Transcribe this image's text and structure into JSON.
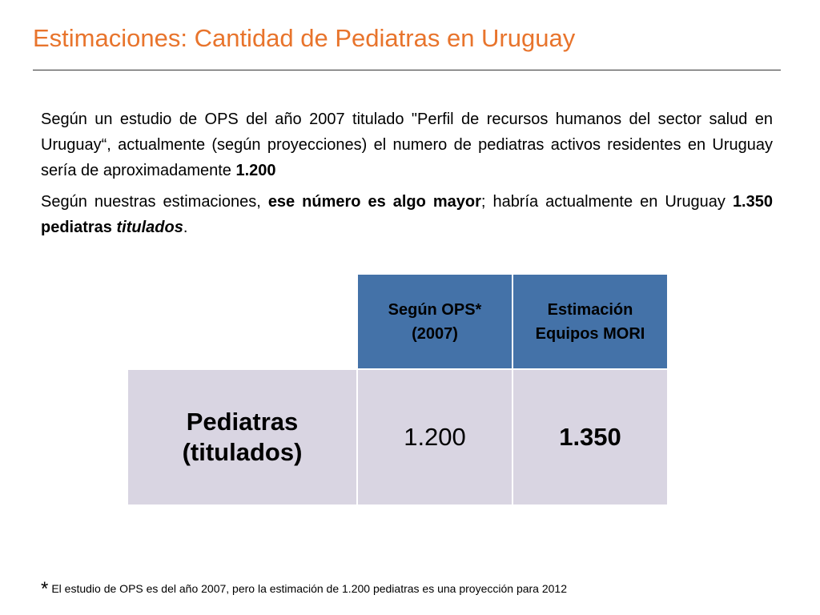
{
  "slide": {
    "title": "Estimaciones: Cantidad de Pediatras en Uruguay"
  },
  "paragraph1": {
    "text": "Según un estudio de OPS del año 2007 titulado \"Perfil de recursos humanos del sector salud en Uruguay“, actualmente (según proyecciones) el numero de pediatras activos residentes en Uruguay sería de aproximadamente ",
    "bold_value": "1.200"
  },
  "paragraph2": {
    "prefix": "Según nuestras estimaciones, ",
    "bold_phrase": "ese número es algo mayor",
    "middle": "; habría actualmente en Uruguay ",
    "bold_count": "1.350 pediatras ",
    "bold_italic": "titulados",
    "suffix": "."
  },
  "table": {
    "header_ops_line1": "Según OPS*",
    "header_ops_line2": "(2007)",
    "header_mori_line1": "Estimación",
    "header_mori_line2": "Equipos MORI",
    "row_label_line1": "Pediatras",
    "row_label_line2": "(titulados)",
    "value_ops": "1.200",
    "value_mori": "1.350"
  },
  "footnote": {
    "marker": "*",
    "text": "El estudio de OPS es del año 2007, pero la estimación de 1.200 pediatras es una proyección para 2012"
  },
  "colors": {
    "title": "#e8742c",
    "header_fill": "#4472a8",
    "row_fill": "#d9d5e2"
  }
}
